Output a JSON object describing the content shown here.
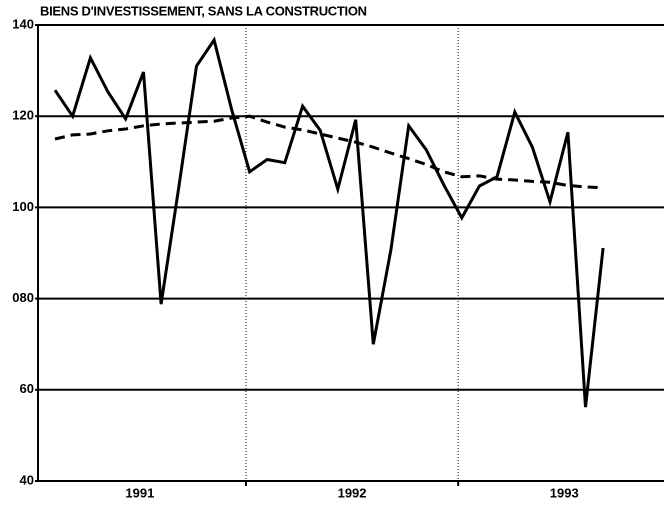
{
  "chart_data": {
    "type": "line",
    "title": "BIENS D'INVESTISSEMENT, SANS LA CONSTRUCTION",
    "x": [
      1991.1,
      1991.183,
      1991.267,
      1991.35,
      1991.433,
      1991.517,
      1991.6,
      1991.683,
      1991.767,
      1991.85,
      1991.933,
      1992.017,
      1992.1,
      1992.183,
      1992.267,
      1992.35,
      1992.433,
      1992.517,
      1992.6,
      1992.683,
      1992.767,
      1992.85,
      1992.933,
      1993.017,
      1993.1,
      1993.183,
      1993.267,
      1993.35,
      1993.433,
      1993.517,
      1993.6,
      1993.683
    ],
    "series": [
      {
        "color": "#000000",
        "dashed": false,
        "values": [
          125.7,
          120.0,
          132.8,
          125.3,
          119.4,
          129.7,
          78.8,
          104.3,
          131.0,
          136.7,
          121.4,
          107.8,
          110.5,
          109.8,
          122.2,
          116.9,
          104.0,
          119.2,
          70.0,
          90.7,
          117.9,
          112.6,
          104.9,
          97.7,
          104.7,
          106.7,
          120.9,
          113.2,
          101.2,
          116.5,
          56.2,
          91.1
        ]
      },
      {
        "color": "#000000",
        "dashed": true,
        "values": [
          115.0,
          115.9,
          116.1,
          116.8,
          117.2,
          117.9,
          118.3,
          118.5,
          118.7,
          118.9,
          119.6,
          120.0,
          118.7,
          117.6,
          117.0,
          116.1,
          115.2,
          114.3,
          113.2,
          111.9,
          110.7,
          109.4,
          107.8,
          106.7,
          106.9,
          106.2,
          106.0,
          105.7,
          105.5,
          104.8,
          104.5,
          104.3
        ]
      }
    ],
    "xlim": [
      1991.02,
      1993.97
    ],
    "xticks": [
      {
        "value": 1991.5,
        "label": "1991"
      },
      {
        "value": 1992.5,
        "label": "1992"
      },
      {
        "value": 1993.5,
        "label": "1993"
      }
    ],
    "xgrid": [
      1992,
      1993
    ],
    "ylim": [
      40,
      140
    ],
    "yticks": [
      40,
      60,
      {
        "value": 80,
        "label": "080"
      },
      100,
      120,
      140
    ],
    "grid": true
  }
}
